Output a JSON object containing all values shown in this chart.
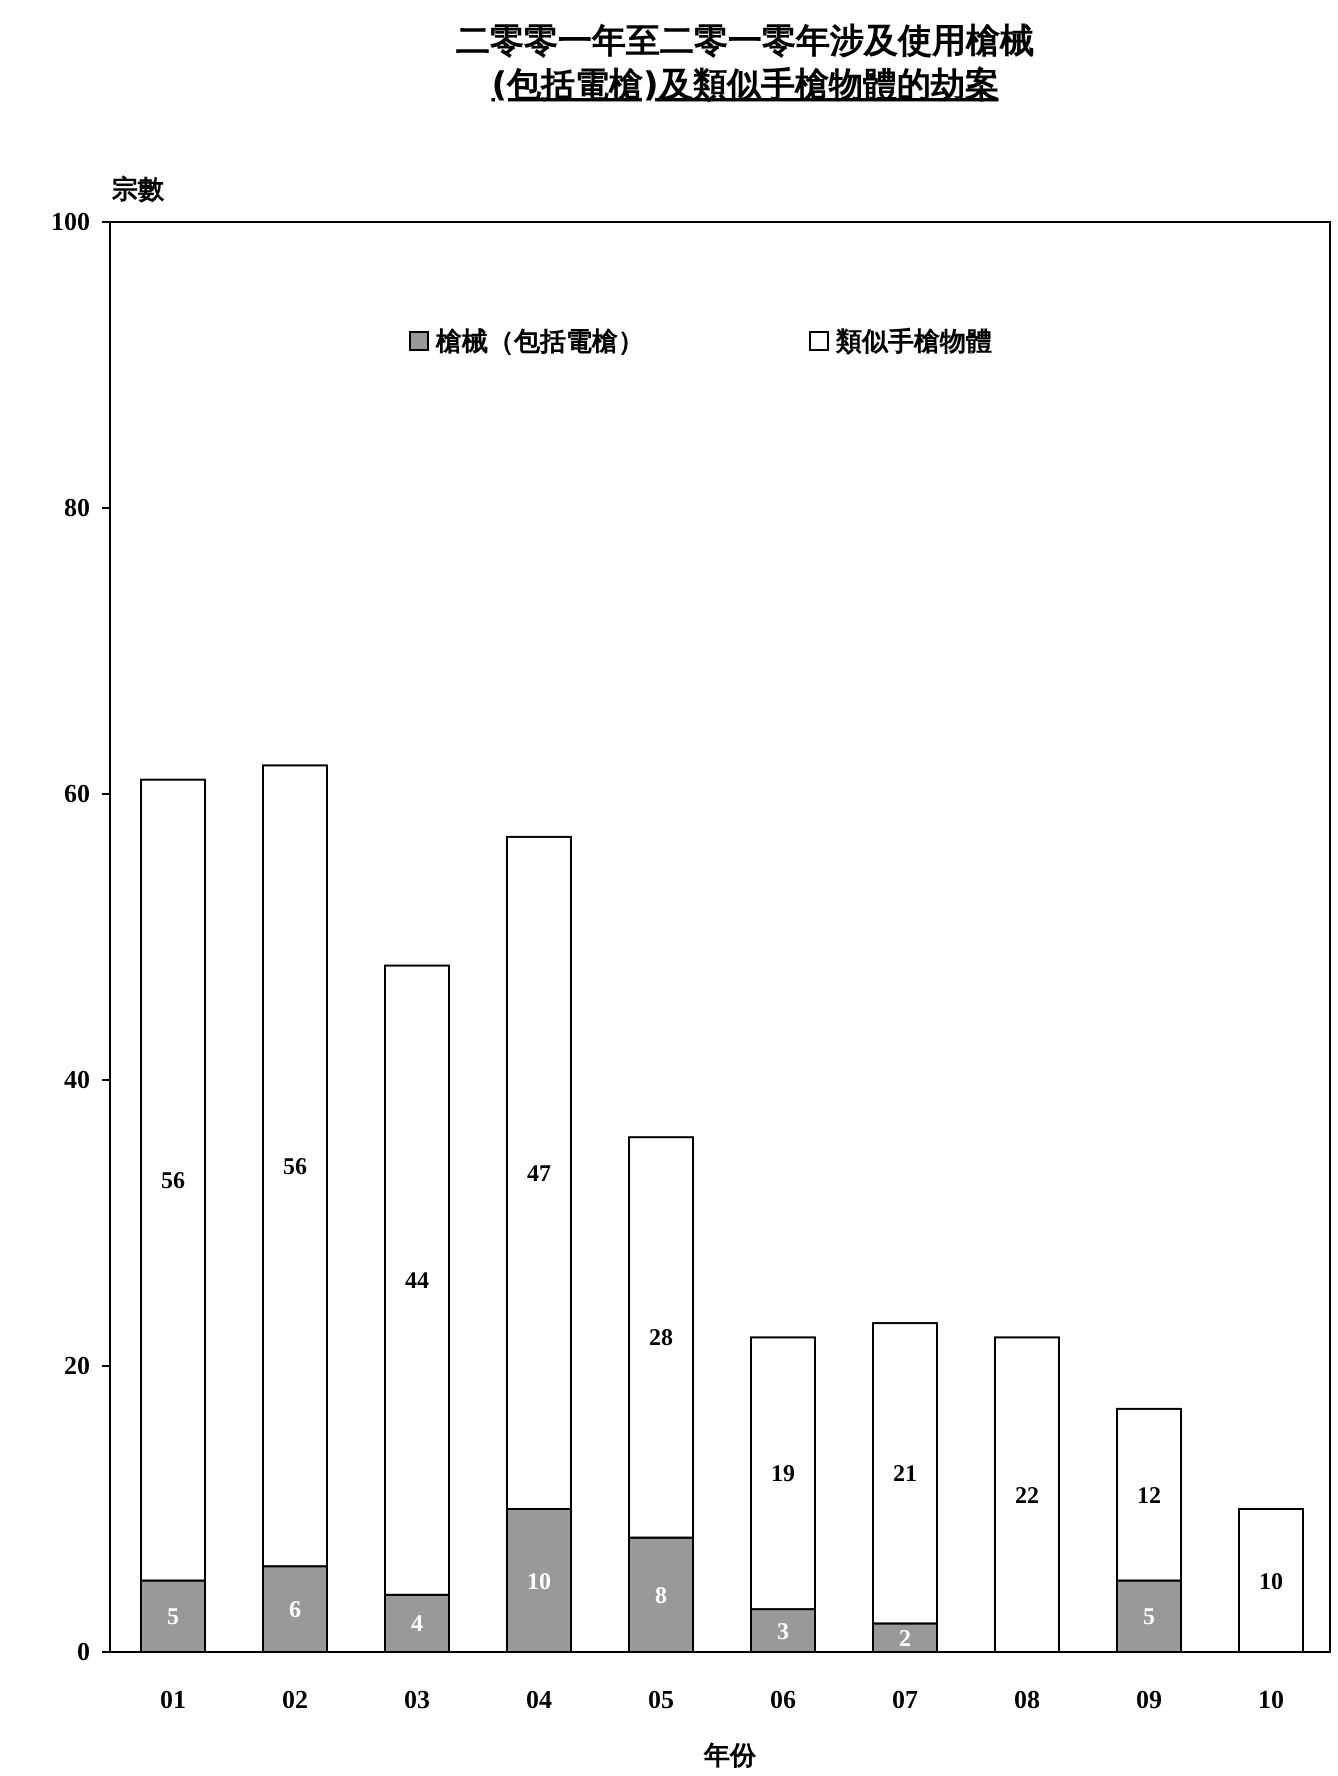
{
  "chart_data": {
    "type": "bar",
    "title": "二零零一年至二零一零年涉及使用槍械\n(包括電槍)及類似手槍物體的劫案",
    "ylabel": "宗數",
    "xlabel": "年份",
    "categories": [
      "01",
      "02",
      "03",
      "04",
      "05",
      "06",
      "07",
      "08",
      "09",
      "10"
    ],
    "stacked": true,
    "data_labels": true,
    "legend": "top",
    "grid": false,
    "ylim": [
      0,
      100
    ],
    "yticks": [
      0,
      20,
      40,
      60,
      80,
      100
    ],
    "series": [
      {
        "name": "槍械（包括電槍）",
        "color": "#999999",
        "values": [
          5,
          6,
          4,
          10,
          8,
          3,
          2,
          null,
          5,
          null
        ]
      },
      {
        "name": "類似手槍物體",
        "color": "#ffffff",
        "values": [
          56,
          56,
          44,
          47,
          28,
          19,
          21,
          22,
          12,
          10
        ]
      }
    ]
  }
}
